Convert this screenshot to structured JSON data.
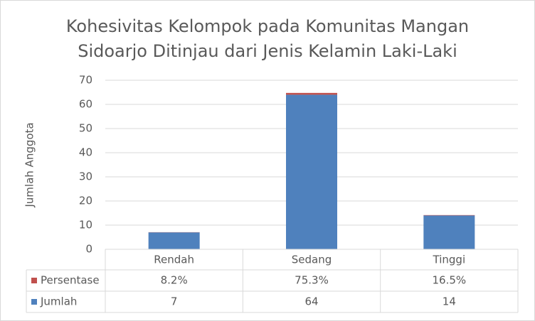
{
  "chart_data": {
    "type": "bar",
    "stacked": true,
    "title": [
      "Kohesivitas Kelompok pada Komunitas Mangan",
      "Sidoarjo Ditinjau dari Jenis Kelamin Laki-Laki"
    ],
    "y_label": "Jumlah Anggota",
    "categories": [
      "Rendah",
      "Sedang",
      "Tinggi"
    ],
    "series": [
      {
        "name": "Jumlah",
        "color": "#4f81bd",
        "values": [
          7,
          64,
          14
        ]
      },
      {
        "name": "Persentase",
        "color": "#c0504d",
        "values": [
          0.082,
          0.753,
          0.165
        ],
        "value_labels": [
          "8.2%",
          "75.3%",
          "16.5%"
        ]
      }
    ],
    "ylim": [
      0,
      70
    ],
    "yticks": [
      0,
      10,
      20,
      30,
      40,
      50,
      60,
      70
    ],
    "grid": true,
    "data_table": true
  }
}
